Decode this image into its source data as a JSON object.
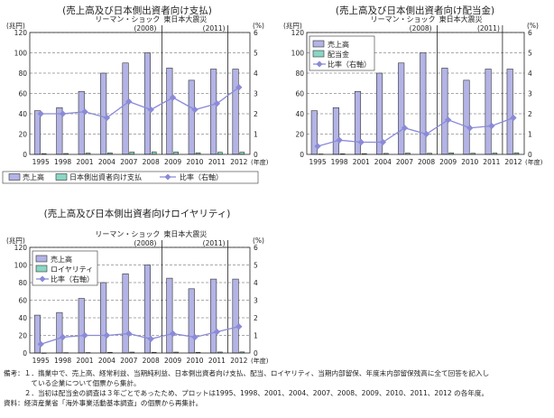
{
  "common": {
    "years": [
      "1995",
      "1998",
      "2001",
      "2004",
      "2007",
      "2008",
      "2009",
      "2010",
      "2011",
      "2012"
    ],
    "left_unit": "(兆円)",
    "right_unit": "(%)",
    "x_unit": "(年度)",
    "left_ticks": [
      "0",
      "20",
      "40",
      "60",
      "80",
      "100",
      "120"
    ],
    "right_ticks": [
      "0",
      "1",
      "2",
      "3",
      "4",
      "5",
      "6"
    ],
    "lehman_label": "リーマン・ショック",
    "lehman_year": "(2008)",
    "quake_label": "東日本大震災",
    "quake_year": "(2011)"
  },
  "chart_data": [
    {
      "type": "bar",
      "title": "(売上高及び日本側出資者向け支払)",
      "categories": [
        "1995",
        "1998",
        "2001",
        "2004",
        "2007",
        "2008",
        "2009",
        "2010",
        "2011",
        "2012"
      ],
      "ylim": [
        0,
        120
      ],
      "y2lim": [
        0,
        6
      ],
      "legend_position": "bottom",
      "series": [
        {
          "name": "売上高",
          "kind": "bar",
          "axis": "left",
          "color": "#b3b3e6",
          "values": [
            43,
            46,
            62,
            80,
            90,
            100,
            85,
            73,
            84,
            84
          ]
        },
        {
          "name": "日本側出資者向け支払",
          "kind": "bar",
          "axis": "left",
          "color": "#8ad6c4",
          "values": [
            0.8,
            0.9,
            1.3,
            1.5,
            2.3,
            2.5,
            2.4,
            1.6,
            2.1,
            2.2
          ]
        },
        {
          "name": "比率（右軸）",
          "kind": "line",
          "axis": "right",
          "color": "#8a8ad8",
          "values": [
            2.0,
            2.0,
            2.1,
            1.8,
            2.6,
            2.2,
            2.8,
            2.2,
            2.5,
            3.3
          ]
        }
      ]
    },
    {
      "type": "bar",
      "title": "(売上高及び日本側出資者向け配当金)",
      "categories": [
        "1995",
        "1998",
        "2001",
        "2004",
        "2007",
        "2008",
        "2009",
        "2010",
        "2011",
        "2012"
      ],
      "ylim": [
        0,
        120
      ],
      "y2lim": [
        0,
        6
      ],
      "legend_position": "top-left",
      "series": [
        {
          "name": "売上高",
          "kind": "bar",
          "axis": "left",
          "color": "#b3b3e6",
          "values": [
            43,
            46,
            62,
            80,
            90,
            100,
            85,
            73,
            84,
            84
          ]
        },
        {
          "name": "配当金",
          "kind": "bar",
          "axis": "left",
          "color": "#8ad6c4",
          "values": [
            0.4,
            0.6,
            0.8,
            1.0,
            1.3,
            1.1,
            1.5,
            1.1,
            1.3,
            1.6
          ]
        },
        {
          "name": "比率（右軸）",
          "kind": "line",
          "axis": "right",
          "color": "#8a8ad8",
          "values": [
            0.4,
            0.7,
            0.6,
            0.6,
            1.3,
            1.0,
            1.7,
            1.3,
            1.4,
            1.8
          ]
        }
      ]
    },
    {
      "type": "bar",
      "title": "(売上高及び日本側出資者向けロイヤリティ)",
      "categories": [
        "1995",
        "1998",
        "2001",
        "2004",
        "2007",
        "2008",
        "2009",
        "2010",
        "2011",
        "2012"
      ],
      "ylim": [
        0,
        120
      ],
      "y2lim": [
        0,
        6
      ],
      "legend_position": "top-left",
      "series": [
        {
          "name": "売上高",
          "kind": "bar",
          "axis": "left",
          "color": "#b3b3e6",
          "values": [
            43,
            46,
            62,
            80,
            90,
            100,
            85,
            73,
            84,
            84
          ]
        },
        {
          "name": "ロイヤリティ",
          "kind": "bar",
          "axis": "left",
          "color": "#8ad6c4",
          "values": [
            0.2,
            0.4,
            0.5,
            0.8,
            1.0,
            0.8,
            1.0,
            0.8,
            1.1,
            1.2
          ]
        },
        {
          "name": "比率（右軸）",
          "kind": "line",
          "axis": "right",
          "color": "#8a8ad8",
          "values": [
            0.5,
            0.9,
            1.0,
            1.0,
            1.1,
            0.8,
            1.1,
            0.9,
            1.2,
            1.5
          ]
        }
      ]
    }
  ],
  "notes": [
    "備考：１．㩦業中で、売上高、経常利益、当期純利益、日本側出資者向け支払、配当、ロイヤリティ、当期内部留保、年度末内部留保残高に全て回答を記入し",
    "　　　　ている企業について個票から集計。",
    "　　　２．当初は配当金の調査は３年ごとであったため、プロットは1995、1998、2001、2004、2007、2008、2009、2010、2011、2012 の各年度。",
    "資料：経済産業省「海外事業活動基本調査」の個票から再集計。"
  ]
}
